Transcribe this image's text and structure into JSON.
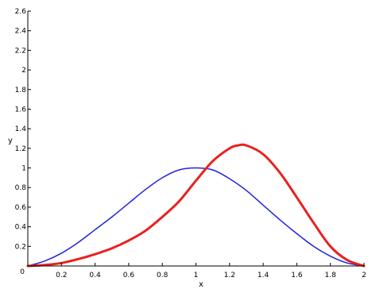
{
  "chart_data": {
    "type": "line",
    "title": "",
    "xlabel": "x",
    "ylabel": "y",
    "xlim": [
      0,
      2
    ],
    "ylim": [
      0,
      2.6
    ],
    "grid": false,
    "x_ticks": [
      0.2,
      0.4,
      0.6,
      0.8,
      1,
      1.2,
      1.4,
      1.6,
      1.8,
      2
    ],
    "y_ticks": [
      0,
      0.2,
      0.4,
      0.6,
      0.8,
      1,
      1.2,
      1.4,
      1.6,
      1.8,
      2,
      2.2,
      2.4,
      2.6
    ],
    "series": [
      {
        "color": "#2222dd",
        "x": [
          0,
          0.1,
          0.2,
          0.3,
          0.4,
          0.5,
          0.6,
          0.7,
          0.8,
          0.9,
          1.0,
          1.1,
          1.2,
          1.3,
          1.4,
          1.5,
          1.6,
          1.7,
          1.8,
          1.9,
          2.0
        ],
        "values": [
          0.0,
          0.05,
          0.13,
          0.24,
          0.37,
          0.5,
          0.64,
          0.78,
          0.9,
          0.98,
          1.0,
          0.98,
          0.89,
          0.77,
          0.62,
          0.47,
          0.33,
          0.2,
          0.1,
          0.03,
          0.0
        ]
      },
      {
        "color": "#e8211e",
        "x": [
          0,
          0.1,
          0.2,
          0.3,
          0.4,
          0.5,
          0.6,
          0.7,
          0.8,
          0.9,
          1.0,
          1.1,
          1.2,
          1.25,
          1.3,
          1.4,
          1.5,
          1.6,
          1.7,
          1.8,
          1.9,
          2.0
        ],
        "values": [
          0.0,
          0.01,
          0.03,
          0.07,
          0.12,
          0.18,
          0.26,
          0.36,
          0.5,
          0.66,
          0.87,
          1.07,
          1.2,
          1.23,
          1.23,
          1.14,
          0.95,
          0.7,
          0.44,
          0.2,
          0.06,
          0.0
        ]
      }
    ]
  }
}
